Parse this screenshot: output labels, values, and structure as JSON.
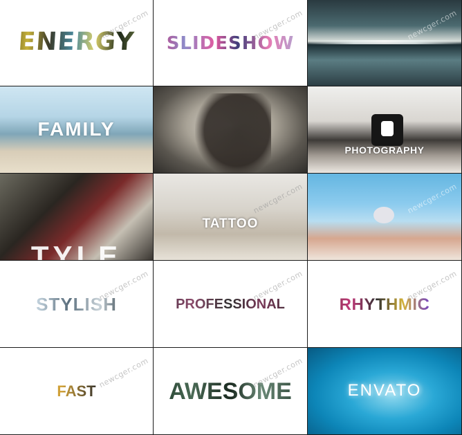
{
  "watermark": "newcger.com",
  "tiles": [
    {
      "name": "energy",
      "text": "ENERGY"
    },
    {
      "name": "slideshow",
      "text": "SLIDESHOW"
    },
    {
      "name": "pool-reflection",
      "text": ""
    },
    {
      "name": "family",
      "text": "FAMILY"
    },
    {
      "name": "portrait",
      "text": ""
    },
    {
      "name": "photography",
      "text": "PHOTOGRAPHY"
    },
    {
      "name": "style",
      "text": "TYLE"
    },
    {
      "name": "tattoo",
      "text": "TATTOO"
    },
    {
      "name": "swimmer",
      "text": ""
    },
    {
      "name": "stylish",
      "text": "STYLISH"
    },
    {
      "name": "professional",
      "text": "PROFESSIONAL"
    },
    {
      "name": "rhythmic",
      "text": "RHYTHMIC"
    },
    {
      "name": "fast",
      "text": "FAST"
    },
    {
      "name": "awesome",
      "text": "AWESOME"
    },
    {
      "name": "envato",
      "text": "ENVATO"
    }
  ]
}
